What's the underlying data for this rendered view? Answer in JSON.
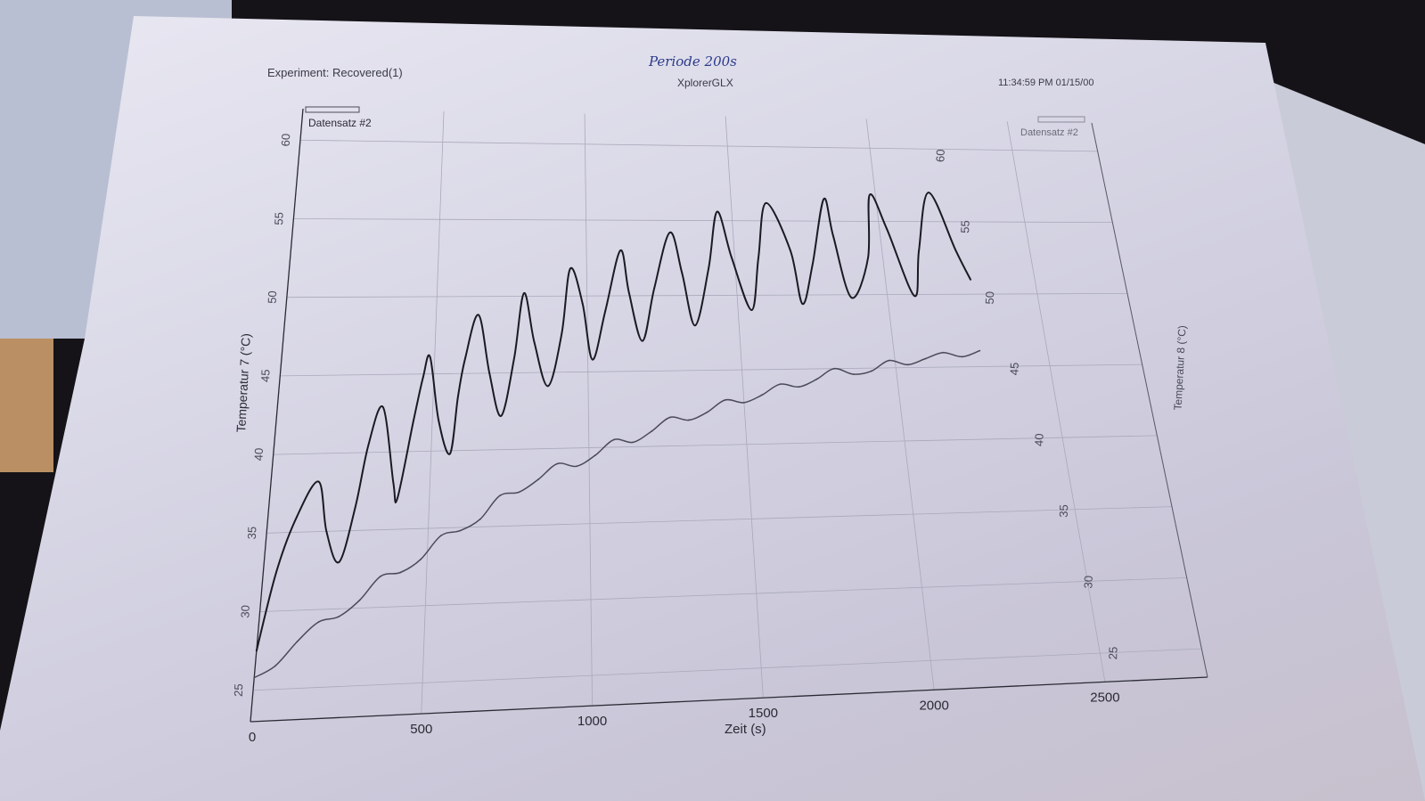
{
  "header": {
    "experiment": "Experiment: Recovered(1)",
    "handwritten_note": "Periode 200s",
    "device": "XplorerGLX",
    "timestamp": "11:34:59 PM 01/15/00"
  },
  "chart_data": {
    "type": "line",
    "xlabel": "Zeit (s)",
    "ylabel_left": "Temperatur 7 (°C)",
    "ylabel_right": "Temperatur 8 (°C)",
    "legend_left": "Datensatz #2",
    "legend_right": "Datensatz #2",
    "xlim": [
      0,
      2800
    ],
    "ylim": [
      23,
      62
    ],
    "xticks": [
      0,
      500,
      1000,
      1500,
      2000,
      2500
    ],
    "yticks_left": [
      25,
      30,
      35,
      40,
      45,
      50,
      55,
      60
    ],
    "yticks_right": [
      25,
      30,
      35,
      40,
      45,
      50,
      55,
      60
    ],
    "grid": true,
    "series": [
      {
        "name": "Temperatur 7",
        "axis": "left",
        "color": "#1a1a22",
        "x": [
          0,
          40,
          90,
          150,
          185,
          230,
          270,
          300,
          340,
          385,
          400,
          440,
          465,
          485,
          520,
          560,
          580,
          600,
          640,
          680,
          720,
          760,
          790,
          825,
          870,
          915,
          945,
          985,
          1015,
          1060,
          1115,
          1140,
          1180,
          1225,
          1285,
          1320,
          1355,
          1410,
          1450,
          1490,
          1545,
          1580,
          1620,
          1690,
          1715,
          1760,
          1820,
          1840,
          1880,
          1950,
          1980,
          2025,
          2090,
          2125,
          2185,
          2250,
          2285
        ],
        "values": [
          27.5,
          32.5,
          36.0,
          38.2,
          35.0,
          33.0,
          36.5,
          40.5,
          42.9,
          38.0,
          37.0,
          42.0,
          44.8,
          46.1,
          42.0,
          39.8,
          43.5,
          46.0,
          48.8,
          45.0,
          42.2,
          46.0,
          50.2,
          47.0,
          44.1,
          47.5,
          51.8,
          49.5,
          45.8,
          49.0,
          53.0,
          50.2,
          47.0,
          50.5,
          54.2,
          51.5,
          48.0,
          51.8,
          55.6,
          52.5,
          49.0,
          52.5,
          56.2,
          53.0,
          49.4,
          52.0,
          56.5,
          54.0,
          49.8,
          52.5,
          56.8,
          54.5,
          49.9,
          53.0,
          57.0,
          53.0,
          51.0
        ]
      },
      {
        "name": "Temperatur 8",
        "axis": "right",
        "color": "#4a4a58",
        "x": [
          0,
          60,
          120,
          180,
          240,
          300,
          360,
          420,
          480,
          540,
          600,
          660,
          720,
          780,
          840,
          900,
          960,
          1020,
          1080,
          1140,
          1200,
          1260,
          1320,
          1380,
          1440,
          1500,
          1560,
          1620,
          1680,
          1740,
          1800,
          1860,
          1920,
          1980,
          2040,
          2100,
          2160,
          2220,
          2280
        ],
        "values": [
          25.8,
          26.5,
          28.0,
          29.2,
          29.5,
          30.5,
          32.0,
          32.2,
          33.0,
          34.5,
          34.8,
          35.5,
          37.0,
          37.2,
          38.0,
          39.0,
          38.8,
          39.5,
          40.5,
          40.3,
          41.0,
          41.9,
          41.7,
          42.2,
          43.0,
          42.8,
          43.3,
          44.0,
          43.8,
          44.3,
          45.0,
          44.6,
          44.8,
          45.5,
          45.2,
          45.6,
          46.0,
          45.7,
          46.1
        ]
      }
    ]
  }
}
